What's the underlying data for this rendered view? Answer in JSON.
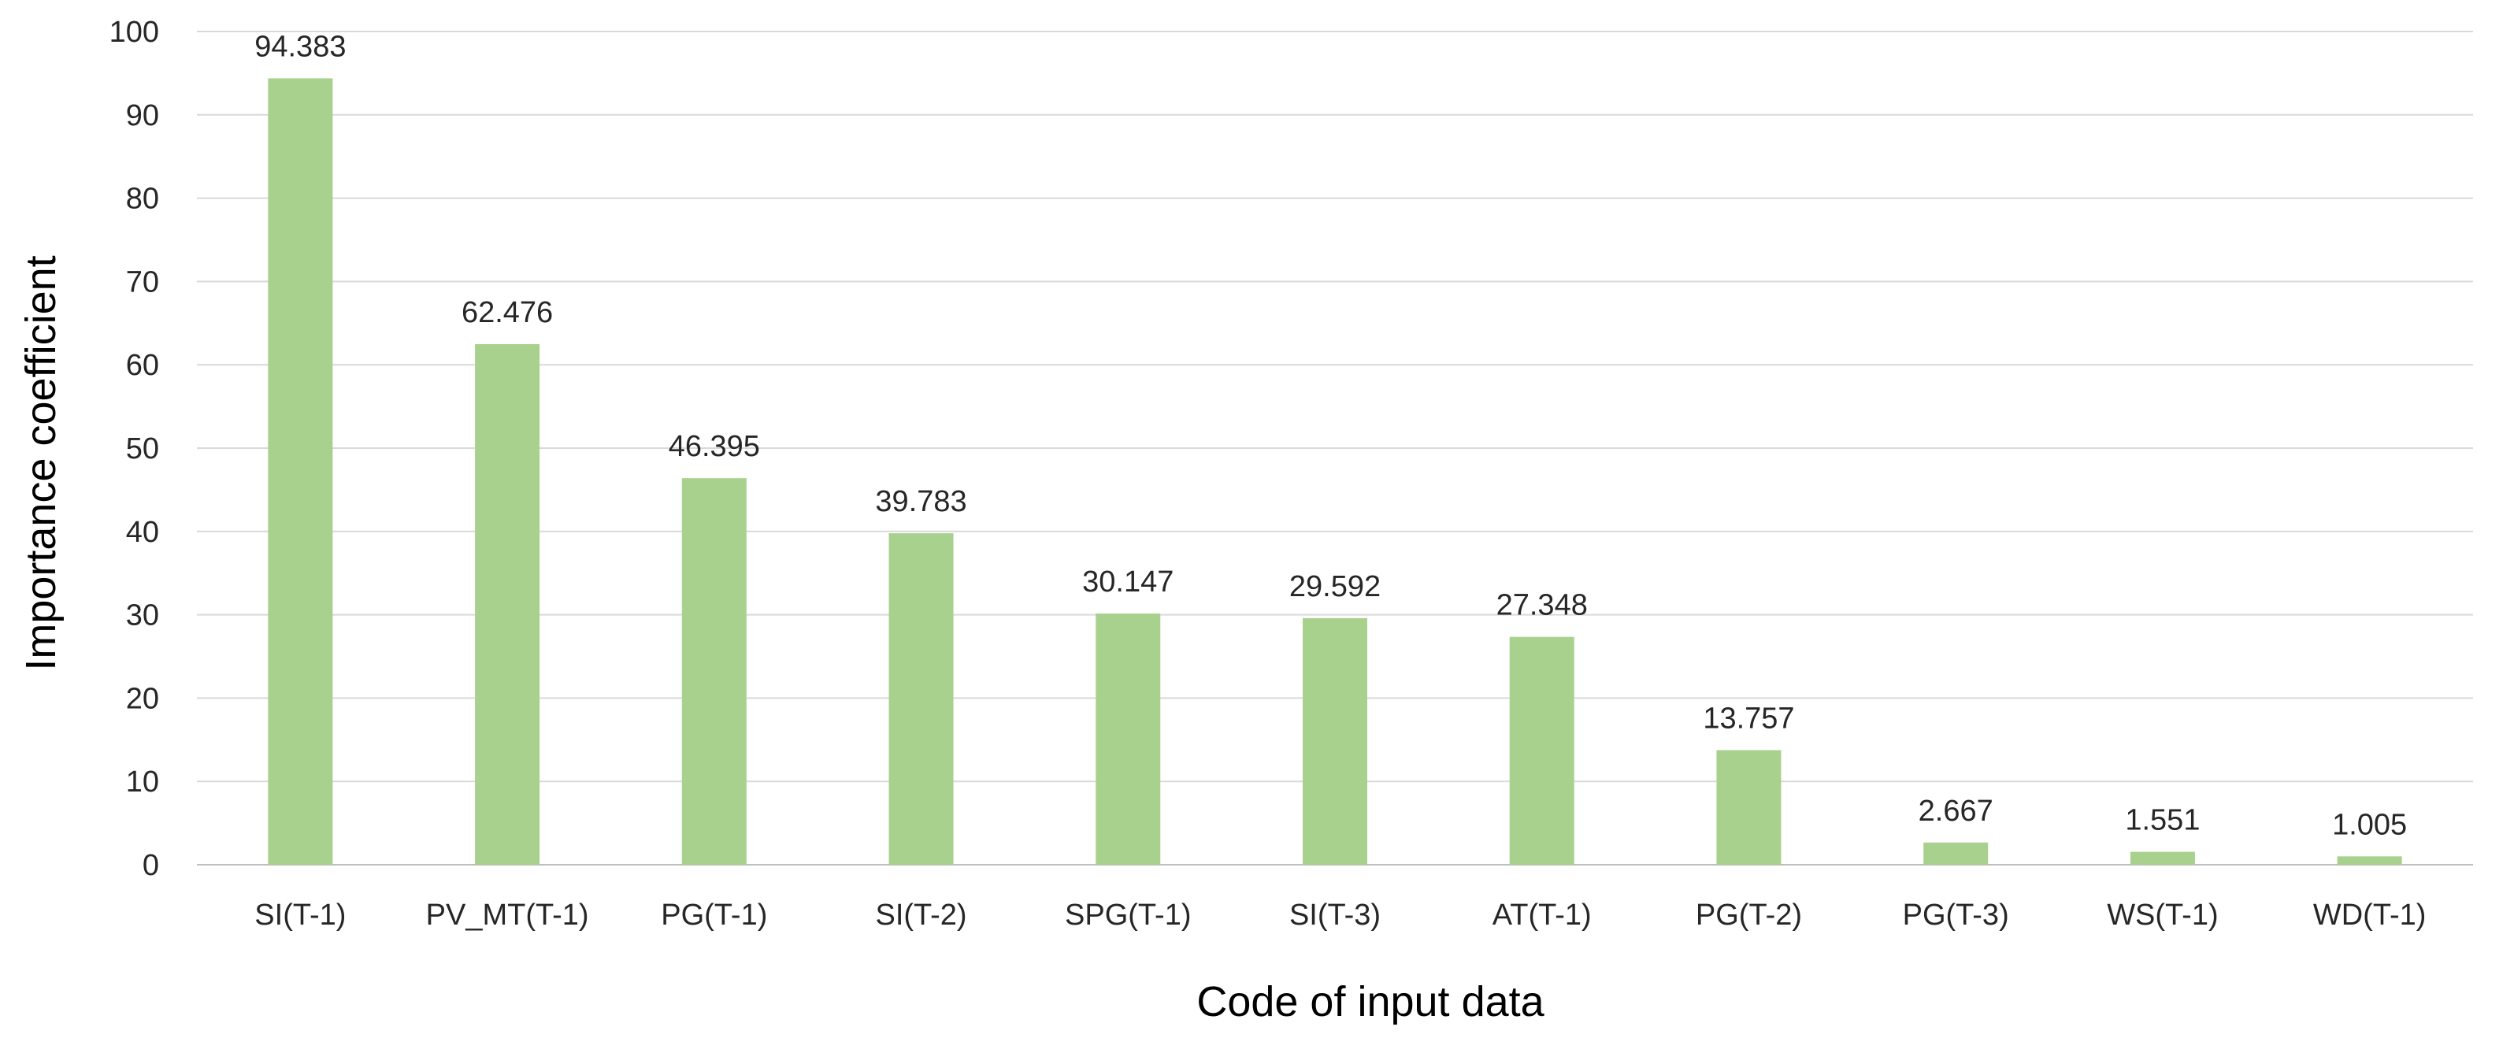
{
  "chart_data": {
    "type": "bar",
    "title": "",
    "xlabel": "Code of input data",
    "ylabel": "Importance coefficient",
    "categories": [
      "SI(T-1)",
      "PV_MT(T-1)",
      "PG(T-1)",
      "SI(T-2)",
      "SPG(T-1)",
      "SI(T-3)",
      "AT(T-1)",
      "PG(T-2)",
      "PG(T-3)",
      "WS(T-1)",
      "WD(T-1)"
    ],
    "values": [
      94.383,
      62.476,
      46.395,
      39.783,
      30.147,
      29.592,
      27.348,
      13.757,
      2.667,
      1.551,
      1.005
    ],
    "value_labels": [
      "94.383",
      "62.476",
      "46.395",
      "39.783",
      "30.147",
      "29.592",
      "27.348",
      "13.757",
      "2.667",
      "1.551",
      "1.005"
    ],
    "ylim": [
      0,
      100
    ],
    "yticks": [
      0,
      10,
      20,
      30,
      40,
      50,
      60,
      70,
      80,
      90,
      100
    ],
    "grid": true,
    "legend": "none",
    "bar_color": "#a9d18e"
  }
}
